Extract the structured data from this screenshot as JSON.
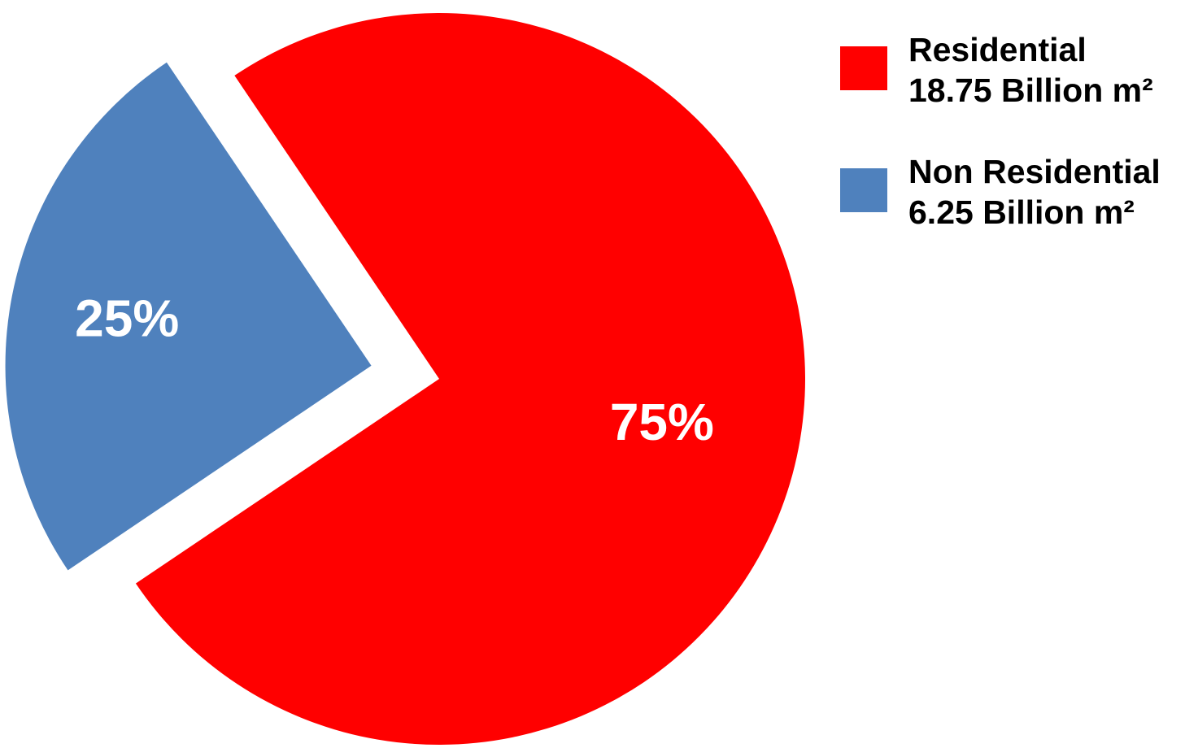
{
  "chart_data": {
    "type": "pie",
    "title": "",
    "slices": [
      {
        "name": "Residential",
        "detail": "18.75 Billion m²",
        "value": 75,
        "label": "75%",
        "color": "#ff0000",
        "exploded": false
      },
      {
        "name": "Non Residential",
        "detail": "6.25 Billion m²",
        "value": 25,
        "label": "25%",
        "color": "#4f81bd",
        "exploded": true
      }
    ],
    "legend_position": "top-right"
  }
}
